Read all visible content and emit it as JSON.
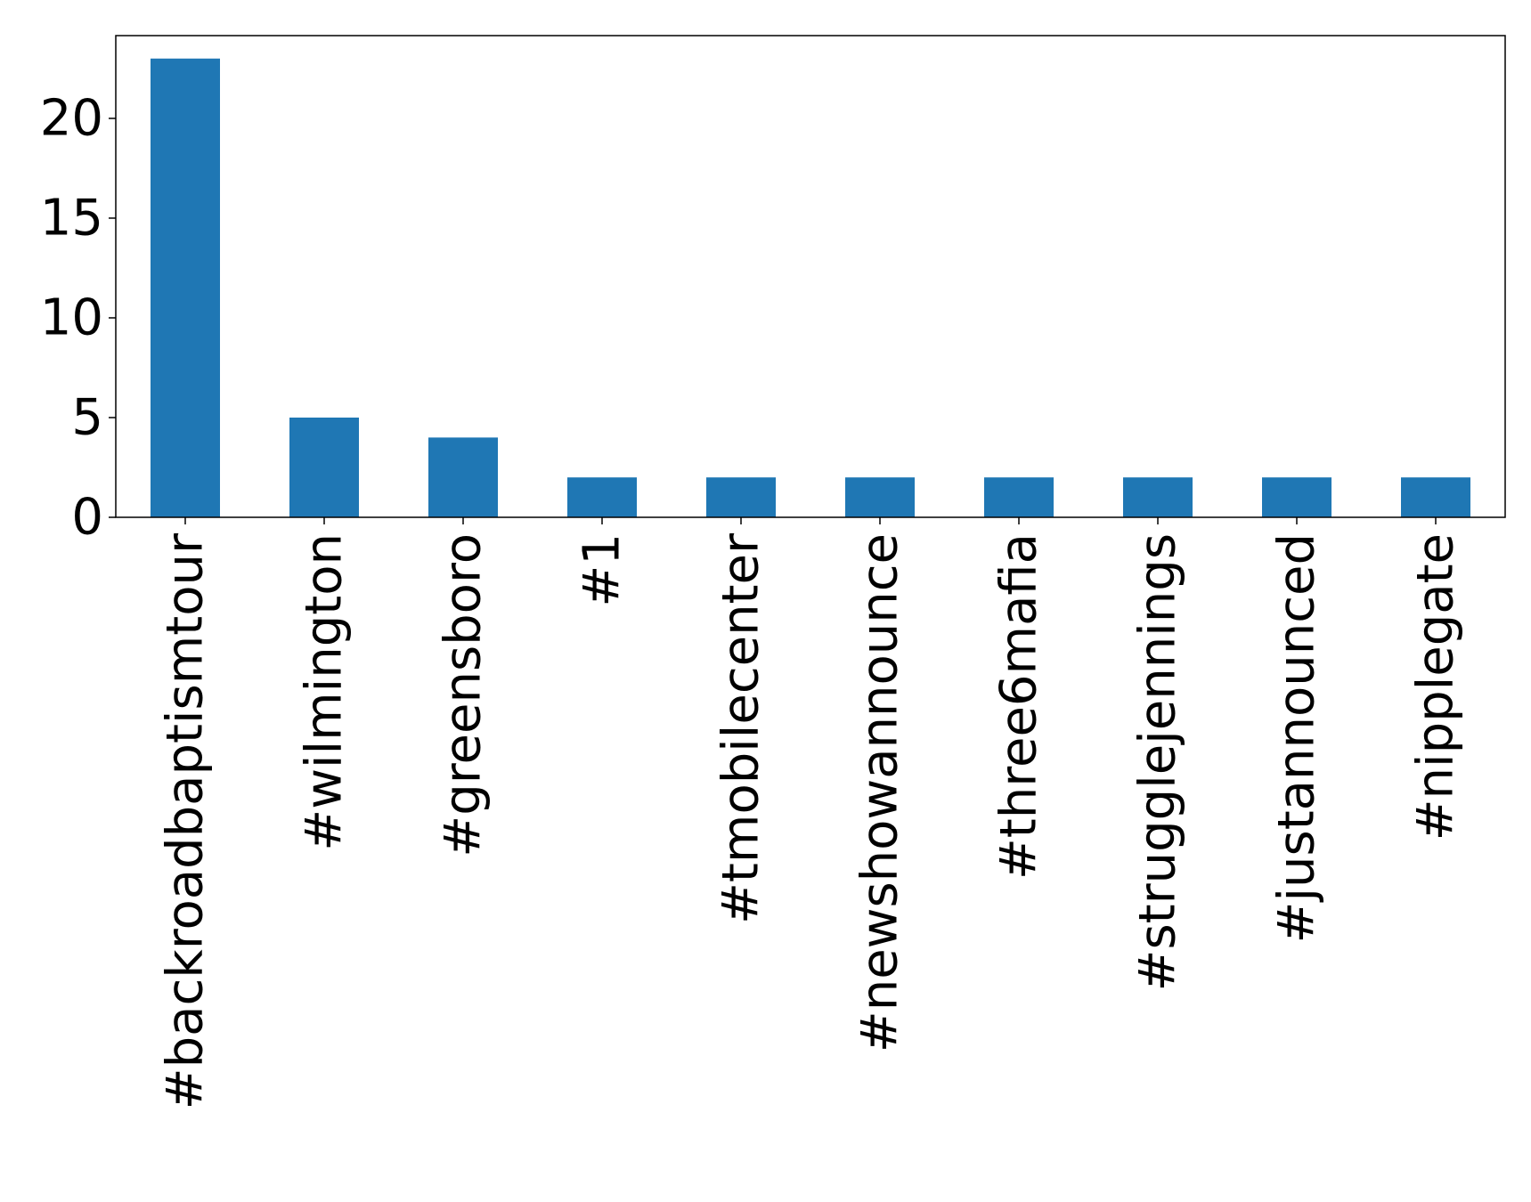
{
  "chart_data": {
    "type": "bar",
    "title": "",
    "xlabel": "",
    "ylabel": "",
    "categories": [
      "#backroadbaptismtour",
      "#wilmington",
      "#greensboro",
      "#1",
      "#tmobilecenter",
      "#newshowannounce",
      "#three6mafia",
      "#strugglejennings",
      "#justannounced",
      "#nipplegate"
    ],
    "values": [
      23,
      5,
      4,
      2,
      2,
      2,
      2,
      2,
      2,
      2
    ],
    "ylim": [
      0,
      24.15
    ],
    "yticks": [
      0,
      5,
      10,
      15,
      20
    ],
    "grid": false,
    "legend": "none",
    "bar_color": "#1f77b4"
  }
}
